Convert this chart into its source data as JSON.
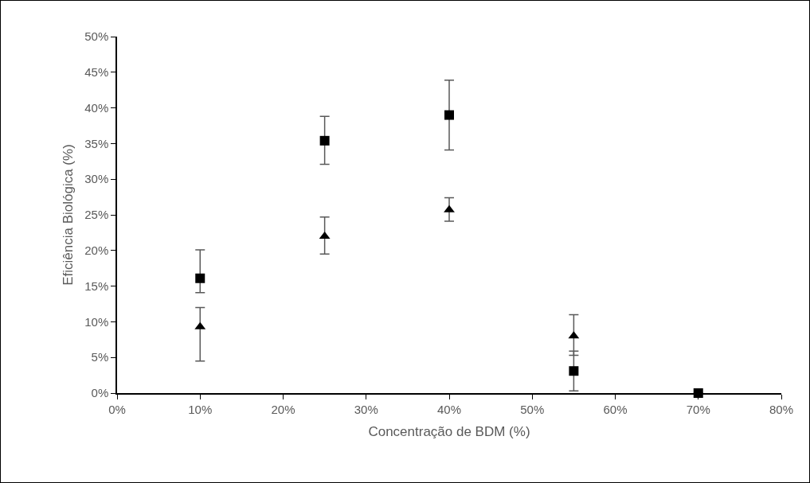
{
  "chart_data": {
    "type": "scatter",
    "xlabel": "Concentração de BDM (%)",
    "ylabel": "Eficiência Biológica (%)",
    "x": [
      10,
      25,
      40,
      55,
      70
    ],
    "series": [
      {
        "color": "#000000",
        "marker": "square",
        "values": [
          16.1,
          35.4,
          39.0,
          3.1,
          0
        ],
        "errors": [
          [
            14.1,
            20.1
          ],
          [
            32.1,
            38.8
          ],
          [
            34.1,
            43.9
          ],
          [
            0.3,
            5.9
          ],
          null
        ]
      },
      {
        "color": "#000000",
        "marker": "triangle",
        "values": [
          9.3,
          22.0,
          25.7,
          8.0,
          null
        ],
        "errors": [
          [
            4.5,
            12.0
          ],
          [
            19.5,
            24.7
          ],
          [
            24.1,
            27.4
          ],
          [
            5.3,
            11.0
          ],
          null
        ]
      }
    ],
    "xlim": [
      0,
      80
    ],
    "xticks": [
      {
        "value": 0,
        "label": "0%"
      },
      {
        "value": 10,
        "label": "10%"
      },
      {
        "value": 20,
        "label": "20%"
      },
      {
        "value": 30,
        "label": "30%"
      },
      {
        "value": 40,
        "label": "40%"
      },
      {
        "value": 50,
        "label": "50%"
      },
      {
        "value": 60,
        "label": "60%"
      },
      {
        "value": 70,
        "label": "70%"
      },
      {
        "value": 80,
        "label": "80%"
      }
    ],
    "ylim": [
      0,
      50
    ],
    "yticks": [
      {
        "value": 0,
        "label": "0%"
      },
      {
        "value": 5,
        "label": "5%"
      },
      {
        "value": 10,
        "label": "10%"
      },
      {
        "value": 15,
        "label": "15%"
      },
      {
        "value": 20,
        "label": "20%"
      },
      {
        "value": 25,
        "label": "25%"
      },
      {
        "value": 30,
        "label": "30%"
      },
      {
        "value": 35,
        "label": "35%"
      },
      {
        "value": 40,
        "label": "40%"
      },
      {
        "value": 45,
        "label": "45%"
      },
      {
        "value": 50,
        "label": "50%"
      }
    ],
    "grid": false
  }
}
